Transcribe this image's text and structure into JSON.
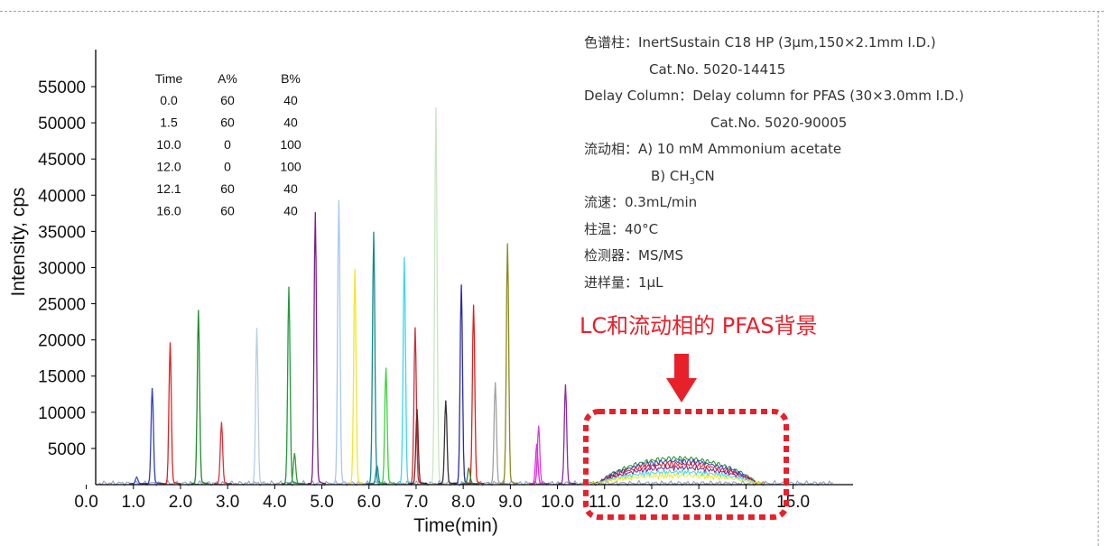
{
  "colors": {
    "accent": "#e8202a",
    "text": "#333333",
    "axis": "#000000"
  },
  "chart_data": {
    "type": "line",
    "xlabel": "Time(min)",
    "ylabel": "Intensity, cps",
    "xlim": [
      0.0,
      15.9
    ],
    "ylim": [
      0,
      57500
    ],
    "x_ticks": [
      "0.0",
      "1.0",
      "2.0",
      "3.0",
      "4.0",
      "5.0",
      "6.0",
      "7.0",
      "8.0",
      "9.0",
      "10.0",
      "11.0",
      "12.0",
      "13.0",
      "14.0",
      "15.0"
    ],
    "y_ticks": [
      "55000",
      "50000",
      "45000",
      "40000",
      "35000",
      "30000",
      "25000",
      "20000",
      "15000",
      "10000",
      "5000"
    ],
    "grid": false,
    "peaks": [
      {
        "rt": 1.07,
        "height": 900,
        "color": "#3b4bd0"
      },
      {
        "rt": 1.4,
        "height": 13200,
        "color": "#2e3fbf"
      },
      {
        "rt": 1.78,
        "height": 19500,
        "color": "#e02020"
      },
      {
        "rt": 2.38,
        "height": 24000,
        "color": "#1e8c2a"
      },
      {
        "rt": 2.87,
        "height": 8500,
        "color": "#e0303a"
      },
      {
        "rt": 3.62,
        "height": 21500,
        "color": "#b8cde3"
      },
      {
        "rt": 4.3,
        "height": 27200,
        "color": "#1f9a3a"
      },
      {
        "rt": 4.42,
        "height": 4200,
        "color": "#3a9a3a"
      },
      {
        "rt": 4.86,
        "height": 37500,
        "color": "#7a1f8a"
      },
      {
        "rt": 5.36,
        "height": 39200,
        "color": "#a9c7ee"
      },
      {
        "rt": 5.7,
        "height": 29700,
        "color": "#f2e62a"
      },
      {
        "rt": 6.1,
        "height": 34800,
        "color": "#138a8a"
      },
      {
        "rt": 6.17,
        "height": 2500,
        "color": "#138a8a"
      },
      {
        "rt": 6.36,
        "height": 16000,
        "color": "#3ad23a"
      },
      {
        "rt": 6.75,
        "height": 31300,
        "color": "#3ad8e8"
      },
      {
        "rt": 6.98,
        "height": 21600,
        "color": "#c4303a"
      },
      {
        "rt": 7.02,
        "height": 10300,
        "color": "#7a1f1f"
      },
      {
        "rt": 7.42,
        "height": 52000,
        "color": "#c8e6c0"
      },
      {
        "rt": 7.63,
        "height": 11500,
        "color": "#333333"
      },
      {
        "rt": 7.96,
        "height": 27500,
        "color": "#2a2aa8"
      },
      {
        "rt": 8.22,
        "height": 24700,
        "color": "#e01f1f"
      },
      {
        "rt": 8.12,
        "height": 2200,
        "color": "#1e8c2a"
      },
      {
        "rt": 8.68,
        "height": 14000,
        "color": "#a0a0a0"
      },
      {
        "rt": 8.94,
        "height": 33200,
        "color": "#8a8a1a"
      },
      {
        "rt": 9.56,
        "height": 5500,
        "color": "#f020f0"
      },
      {
        "rt": 9.6,
        "height": 8000,
        "color": "#d040d0"
      },
      {
        "rt": 10.17,
        "height": 13700,
        "color": "#8a2aa8"
      }
    ],
    "background_hump": {
      "x_range": [
        10.9,
        14.2
      ],
      "series": [
        {
          "color": "#1e8c2a",
          "height": 3400
        },
        {
          "color": "#2e3fbf",
          "height": 3000
        },
        {
          "color": "#e02020",
          "height": 2600
        },
        {
          "color": "#7a1f8a",
          "height": 2100
        },
        {
          "color": "#3ad8e8",
          "height": 1500
        },
        {
          "color": "#f2e62a",
          "height": 1000
        }
      ]
    }
  },
  "gradient_table": {
    "headers": [
      "Time",
      "A%",
      "B%"
    ],
    "rows": [
      [
        "0.0",
        "60",
        "40"
      ],
      [
        "1.5",
        "60",
        "40"
      ],
      [
        "10.0",
        "0",
        "100"
      ],
      [
        "12.0",
        "0",
        "100"
      ],
      [
        "12.1",
        "60",
        "40"
      ],
      [
        "16.0",
        "60",
        "40"
      ]
    ]
  },
  "info": {
    "column_label": "色谱柱：",
    "column_value": "InertSustain C18 HP (3μm,150×2.1mm I.D.)",
    "column_catno": "Cat.No. 5020-14415",
    "delay_label": "Delay Column：",
    "delay_value": "Delay column for PFAS (30×3.0mm I.D.)",
    "delay_catno": "Cat.No. 5020-90005",
    "mobile_label": "流动相：",
    "mobile_a": "A) 10 mM Ammonium acetate",
    "mobile_b_prefix": "B) CH",
    "mobile_b_sub": "3",
    "mobile_b_suffix": "CN",
    "flow": "流速：0.3mL/min",
    "temp": "柱温：40°C",
    "detector": "检测器：MS/MS",
    "injection": "进样量：1μL"
  },
  "annotation": {
    "text": "LC和流动相的 PFAS背景"
  }
}
